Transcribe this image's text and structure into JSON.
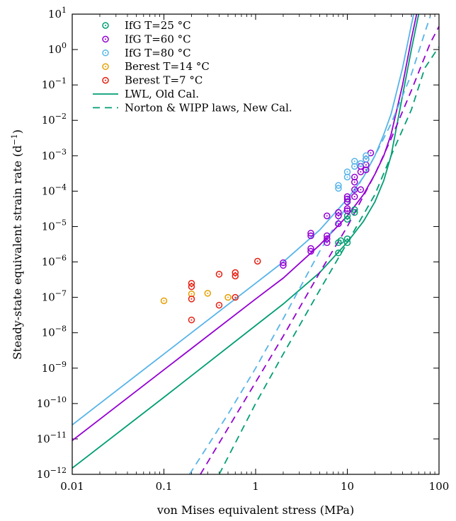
{
  "chart_data": {
    "type": "scatter",
    "xlabel": "von Mises equivalent stress (MPa)",
    "ylabel": "Steady-state equivalent strain rate (d",
    "ylabel_sup": "−1",
    "ylabel_end": ")",
    "xscale": "log",
    "yscale": "log",
    "xlim": [
      0.01,
      100
    ],
    "ylim": [
      1e-12,
      10
    ],
    "grid": false,
    "legend_position": "top-left",
    "x_ticks": [
      {
        "value": 0.01,
        "label": "0.01"
      },
      {
        "value": 0.1,
        "label": "0.1"
      },
      {
        "value": 1,
        "label": "1"
      },
      {
        "value": 10,
        "label": "10"
      },
      {
        "value": 100,
        "label": "100"
      }
    ],
    "y_ticks": [
      {
        "value": 1e-12,
        "base": "10",
        "exp": "−12"
      },
      {
        "value": 1e-11,
        "base": "10",
        "exp": "−11"
      },
      {
        "value": 1e-10,
        "base": "10",
        "exp": "−10"
      },
      {
        "value": 1e-09,
        "base": "10",
        "exp": "−9"
      },
      {
        "value": 1e-08,
        "base": "10",
        "exp": "−8"
      },
      {
        "value": 1e-07,
        "base": "10",
        "exp": "−7"
      },
      {
        "value": 1e-06,
        "base": "10",
        "exp": "−6"
      },
      {
        "value": 1e-05,
        "base": "10",
        "exp": "−5"
      },
      {
        "value": 0.0001,
        "base": "10",
        "exp": "−4"
      },
      {
        "value": 0.001,
        "base": "10",
        "exp": "−3"
      },
      {
        "value": 0.01,
        "base": "10",
        "exp": "−2"
      },
      {
        "value": 0.1,
        "base": "10",
        "exp": "−1"
      },
      {
        "value": 1,
        "base": "10",
        "exp": "0"
      },
      {
        "value": 10,
        "base": "10",
        "exp": "1"
      }
    ],
    "colors": {
      "ifg25": "#009e73",
      "ifg60": "#9400d3",
      "ifg80": "#56b4e9",
      "berest14": "#e69f00",
      "berest7": "#e51e10"
    },
    "scatter_series": [
      {
        "name": "IfG T=25 °C",
        "color_key": "ifg25",
        "points": [
          [
            8,
            1.8e-06
          ],
          [
            8,
            3.5e-06
          ],
          [
            8.5,
            4e-06
          ],
          [
            10,
            3.5e-06
          ],
          [
            10,
            4.5e-06
          ],
          [
            10,
            1.6e-05
          ],
          [
            10,
            2e-05
          ],
          [
            12,
            2.5e-05
          ],
          [
            12,
            3e-05
          ]
        ]
      },
      {
        "name": "IfG T=60 °C",
        "color_key": "ifg60",
        "points": [
          [
            2,
            8e-07
          ],
          [
            2,
            9.5e-07
          ],
          [
            4,
            2e-06
          ],
          [
            4,
            2.4e-06
          ],
          [
            4,
            5.5e-06
          ],
          [
            4,
            6.5e-06
          ],
          [
            6,
            3.5e-06
          ],
          [
            6,
            4.5e-06
          ],
          [
            6,
            5.5e-06
          ],
          [
            6,
            2e-05
          ],
          [
            8,
            1.2e-05
          ],
          [
            8,
            2e-05
          ],
          [
            8,
            2.5e-05
          ],
          [
            10,
            2.8e-05
          ],
          [
            10,
            3.2e-05
          ],
          [
            10,
            5e-05
          ],
          [
            10,
            6e-05
          ],
          [
            10,
            7e-05
          ],
          [
            12,
            7e-05
          ],
          [
            12,
            0.00011
          ],
          [
            12,
            0.00018
          ],
          [
            12,
            0.00025
          ],
          [
            14,
            0.00011
          ],
          [
            14,
            0.00035
          ],
          [
            14,
            0.0005
          ],
          [
            16,
            0.0004
          ],
          [
            16,
            0.00055
          ],
          [
            16,
            0.0008
          ],
          [
            18,
            0.0012
          ]
        ]
      },
      {
        "name": "IfG T=80 °C",
        "color_key": "ifg80",
        "points": [
          [
            8,
            0.00012
          ],
          [
            8,
            0.000145
          ],
          [
            10,
            0.00025
          ],
          [
            10,
            0.00035
          ],
          [
            12,
            0.0005
          ],
          [
            12,
            0.0007
          ],
          [
            14,
            0.0006
          ],
          [
            16,
            0.0008
          ],
          [
            16,
            0.001
          ]
        ]
      },
      {
        "name": "Berest T=14 °C",
        "color_key": "berest14",
        "points": [
          [
            0.1,
            8e-08
          ],
          [
            0.2,
            1.25e-07
          ],
          [
            0.3,
            1.3e-07
          ],
          [
            0.5,
            1e-07
          ]
        ]
      },
      {
        "name": "Berest T=7 °C",
        "color_key": "berest7",
        "points": [
          [
            0.2,
            2.3e-08
          ],
          [
            0.2,
            9e-08
          ],
          [
            0.2,
            2e-07
          ],
          [
            0.2,
            2.5e-07
          ],
          [
            0.4,
            6e-08
          ],
          [
            0.4,
            4.5e-07
          ],
          [
            0.6,
            1e-07
          ],
          [
            0.6,
            4e-07
          ],
          [
            0.6,
            5e-07
          ],
          [
            1.05,
            1.05e-06
          ]
        ]
      }
    ],
    "line_series": [
      {
        "name": "LWL, Old Cal.",
        "style": "solid",
        "color_key": "ifg25",
        "points": [
          [
            0.01,
            1.5e-12
          ],
          [
            0.1,
            1.5e-10
          ],
          [
            1,
            1.6e-08
          ],
          [
            2,
            6.5e-08
          ],
          [
            5,
            5e-07
          ],
          [
            10,
            3.6e-06
          ],
          [
            15,
            1.4e-05
          ],
          [
            20,
            5e-05
          ],
          [
            25,
            0.0002
          ],
          [
            30,
            0.001
          ],
          [
            40,
            0.05
          ],
          [
            50,
            1
          ],
          [
            60,
            10
          ]
        ]
      },
      {
        "name": "",
        "style": "solid",
        "color_key": "ifg60",
        "points": [
          [
            0.01,
            9e-12
          ],
          [
            0.1,
            9e-10
          ],
          [
            1,
            9e-08
          ],
          [
            2,
            3.5e-07
          ],
          [
            5,
            3e-06
          ],
          [
            10,
            2e-05
          ],
          [
            15,
            8e-05
          ],
          [
            20,
            0.0003
          ],
          [
            25,
            0.001
          ],
          [
            30,
            0.004
          ],
          [
            40,
            0.1
          ],
          [
            50,
            2
          ],
          [
            57,
            10
          ]
        ]
      },
      {
        "name": "",
        "style": "solid",
        "color_key": "ifg80",
        "points": [
          [
            0.01,
            2.5e-11
          ],
          [
            0.1,
            2.5e-09
          ],
          [
            1,
            2.5e-07
          ],
          [
            2,
            1e-06
          ],
          [
            5,
            8e-06
          ],
          [
            10,
            6e-05
          ],
          [
            15,
            0.00025
          ],
          [
            20,
            0.001
          ],
          [
            25,
            0.004
          ],
          [
            30,
            0.015
          ],
          [
            40,
            0.3
          ],
          [
            50,
            5
          ],
          [
            53,
            10
          ]
        ]
      },
      {
        "name": "Norton & WIPP laws, New Cal.",
        "style": "dashed",
        "color_key": "ifg25",
        "points": [
          [
            0.4,
            1e-12
          ],
          [
            1,
            1e-10
          ],
          [
            2,
            2.5e-09
          ],
          [
            5,
            1.6e-07
          ],
          [
            10,
            3.5e-06
          ],
          [
            20,
            8e-05
          ],
          [
            30,
            0.001
          ],
          [
            50,
            0.02
          ],
          [
            70,
            0.3
          ],
          [
            100,
            1.2
          ]
        ]
      },
      {
        "name": "",
        "style": "dashed",
        "color_key": "ifg60",
        "points": [
          [
            0.25,
            1e-12
          ],
          [
            0.5,
            2e-11
          ],
          [
            1,
            4e-10
          ],
          [
            2,
            8e-09
          ],
          [
            5,
            5e-07
          ],
          [
            10,
            1e-05
          ],
          [
            20,
            0.0003
          ],
          [
            30,
            0.003
          ],
          [
            50,
            0.07
          ],
          [
            80,
            1.5
          ],
          [
            100,
            4.5
          ]
        ]
      },
      {
        "name": "",
        "style": "dashed",
        "color_key": "ifg80",
        "points": [
          [
            0.19,
            1e-12
          ],
          [
            0.5,
            5e-11
          ],
          [
            1,
            1e-09
          ],
          [
            2,
            2.5e-08
          ],
          [
            5,
            2e-06
          ],
          [
            10,
            4e-05
          ],
          [
            20,
            0.001
          ],
          [
            30,
            0.008
          ],
          [
            50,
            0.2
          ],
          [
            70,
            3
          ],
          [
            80,
            8.5
          ]
        ]
      }
    ],
    "legend": [
      {
        "label": "IfG T=25 °C",
        "kind": "marker",
        "color_key": "ifg25"
      },
      {
        "label": "IfG T=60 °C",
        "kind": "marker",
        "color_key": "ifg60"
      },
      {
        "label": "IfG T=80 °C",
        "kind": "marker",
        "color_key": "ifg80"
      },
      {
        "label": "Berest T=14 °C",
        "kind": "marker",
        "color_key": "berest14"
      },
      {
        "label": "Berest T=7 °C",
        "kind": "marker",
        "color_key": "berest7"
      },
      {
        "label": "LWL, Old Cal.",
        "kind": "solid",
        "color_key": "ifg25"
      },
      {
        "label": "Norton & WIPP laws, New Cal.",
        "kind": "dashed",
        "color_key": "ifg25"
      }
    ]
  }
}
